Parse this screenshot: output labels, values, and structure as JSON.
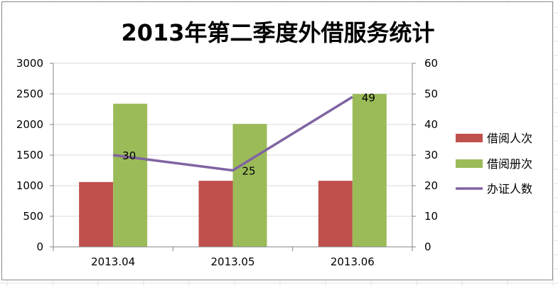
{
  "colors": {
    "borrowers": "#c0504d",
    "books": "#9bbb59",
    "cards": "#8064a2",
    "axis": "#868686",
    "grid": "#d9d9d9"
  },
  "chart_data": {
    "type": "bar",
    "title": "2013年第二季度外借服务统计",
    "categories": [
      "2013.04",
      "2013.05",
      "2013.06"
    ],
    "ylim": [
      0,
      3000
    ],
    "yticks": [
      "0",
      "500",
      "1000",
      "1500",
      "2000",
      "2500",
      "3000"
    ],
    "y2lim": [
      0,
      60
    ],
    "y2ticks": [
      "0",
      "10",
      "20",
      "30",
      "40",
      "50",
      "60"
    ],
    "legend_position": "right",
    "series": [
      {
        "name": "借阅人次",
        "type": "bar",
        "axis": "left",
        "values": [
          1060,
          1080,
          1080
        ]
      },
      {
        "name": "借阅册次",
        "type": "bar",
        "axis": "left",
        "values": [
          2340,
          2010,
          2500
        ]
      },
      {
        "name": "办证人数",
        "type": "line",
        "axis": "right",
        "values": [
          30,
          25,
          49
        ],
        "data_labels": [
          "30",
          "25",
          "49"
        ]
      }
    ]
  }
}
